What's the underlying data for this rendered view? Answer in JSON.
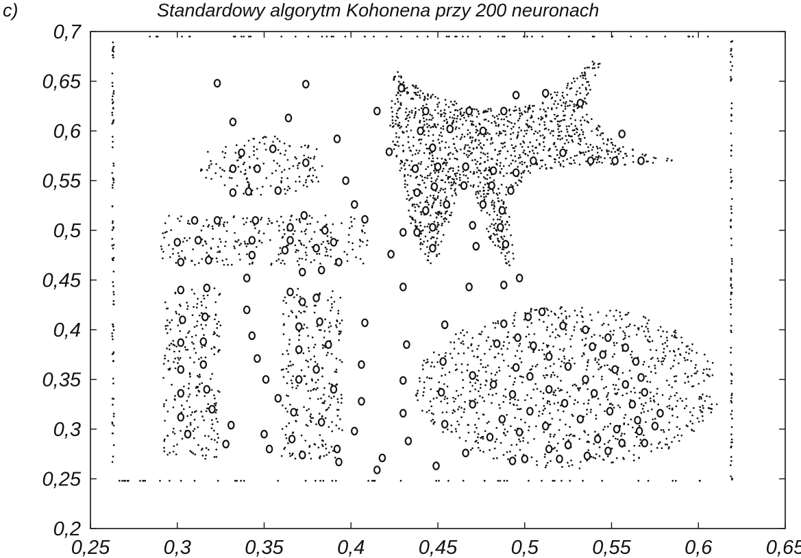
{
  "panel_letter": "c)",
  "chart_data": {
    "type": "scatter",
    "title": "Standardowy algorytm Kohonena przy 200 neuronach",
    "xlabel": "",
    "ylabel": "",
    "xlim": [
      0.25,
      0.65
    ],
    "ylim": [
      0.2,
      0.7
    ],
    "x_tick_labels": [
      "0,25",
      "0,3",
      "0,35",
      "0,4",
      "0,45",
      "0,5",
      "0,55",
      "0,6",
      "0,65"
    ],
    "y_tick_labels": [
      "0,2",
      "0,25",
      "0,3",
      "0,35",
      "0,4",
      "0,45",
      "0,5",
      "0,55",
      "0,6",
      "0,65",
      "0,7"
    ],
    "grid": false,
    "legend": "none",
    "series": [
      {
        "values": "data points (dots)",
        "regions": [
          {
            "shape": "rect",
            "x": [
              0.29,
              0.41
            ],
            "y": [
              0.465,
              0.515
            ]
          },
          {
            "shape": "rect",
            "x": [
              0.292,
              0.325
            ],
            "y": [
              0.27,
              0.442
            ]
          },
          {
            "shape": "rect",
            "x": [
              0.36,
              0.395
            ],
            "y": [
              0.27,
              0.442
            ]
          },
          {
            "shape": "ellipse",
            "center": [
              0.525,
              0.342
            ],
            "radii": [
              0.088,
              0.082
            ]
          },
          {
            "shape": "ellipse",
            "center": [
              0.35,
              0.565
            ],
            "radii": [
              0.037,
              0.03
            ]
          },
          {
            "shape": "star",
            "x": [
              0.42,
              0.585
            ],
            "y": [
              0.455,
              0.675
            ]
          }
        ],
        "frame": {
          "x": [
            0.263,
            0.619
          ],
          "y": [
            0.248,
            0.695
          ]
        }
      },
      {
        "values": "neurons (o markers)",
        "points": [
          [
            0.323,
            0.648
          ],
          [
            0.374,
            0.647
          ],
          [
            0.332,
            0.609
          ],
          [
            0.364,
            0.613
          ],
          [
            0.337,
            0.578
          ],
          [
            0.355,
            0.582
          ],
          [
            0.332,
            0.562
          ],
          [
            0.346,
            0.562
          ],
          [
            0.374,
            0.568
          ],
          [
            0.332,
            0.538
          ],
          [
            0.341,
            0.539
          ],
          [
            0.358,
            0.54
          ],
          [
            0.392,
            0.592
          ],
          [
            0.397,
            0.55
          ],
          [
            0.402,
            0.526
          ],
          [
            0.408,
            0.511
          ],
          [
            0.415,
            0.62
          ],
          [
            0.422,
            0.579
          ],
          [
            0.429,
            0.643
          ],
          [
            0.44,
            0.6
          ],
          [
            0.447,
            0.583
          ],
          [
            0.443,
            0.62
          ],
          [
            0.457,
            0.602
          ],
          [
            0.468,
            0.62
          ],
          [
            0.476,
            0.6
          ],
          [
            0.488,
            0.62
          ],
          [
            0.495,
            0.636
          ],
          [
            0.512,
            0.638
          ],
          [
            0.532,
            0.628
          ],
          [
            0.437,
            0.562
          ],
          [
            0.45,
            0.564
          ],
          [
            0.466,
            0.564
          ],
          [
            0.482,
            0.56
          ],
          [
            0.495,
            0.558
          ],
          [
            0.505,
            0.57
          ],
          [
            0.522,
            0.578
          ],
          [
            0.538,
            0.57
          ],
          [
            0.556,
            0.597
          ],
          [
            0.552,
            0.57
          ],
          [
            0.567,
            0.57
          ],
          [
            0.448,
            0.544
          ],
          [
            0.465,
            0.545
          ],
          [
            0.481,
            0.545
          ],
          [
            0.492,
            0.54
          ],
          [
            0.438,
            0.538
          ],
          [
            0.455,
            0.526
          ],
          [
            0.476,
            0.526
          ],
          [
            0.487,
            0.52
          ],
          [
            0.443,
            0.52
          ],
          [
            0.447,
            0.503
          ],
          [
            0.47,
            0.505
          ],
          [
            0.486,
            0.503
          ],
          [
            0.438,
            0.498
          ],
          [
            0.447,
            0.482
          ],
          [
            0.472,
            0.484
          ],
          [
            0.489,
            0.486
          ],
          [
            0.43,
            0.498
          ],
          [
            0.423,
            0.476
          ],
          [
            0.497,
            0.452
          ],
          [
            0.488,
            0.445
          ],
          [
            0.468,
            0.443
          ],
          [
            0.43,
            0.443
          ],
          [
            0.31,
            0.51
          ],
          [
            0.323,
            0.51
          ],
          [
            0.345,
            0.51
          ],
          [
            0.365,
            0.503
          ],
          [
            0.373,
            0.515
          ],
          [
            0.385,
            0.5
          ],
          [
            0.3,
            0.488
          ],
          [
            0.312,
            0.49
          ],
          [
            0.343,
            0.49
          ],
          [
            0.365,
            0.49
          ],
          [
            0.38,
            0.482
          ],
          [
            0.39,
            0.488
          ],
          [
            0.302,
            0.468
          ],
          [
            0.318,
            0.47
          ],
          [
            0.343,
            0.475
          ],
          [
            0.362,
            0.48
          ],
          [
            0.372,
            0.458
          ],
          [
            0.383,
            0.46
          ],
          [
            0.393,
            0.468
          ],
          [
            0.34,
            0.452
          ],
          [
            0.302,
            0.44
          ],
          [
            0.317,
            0.442
          ],
          [
            0.365,
            0.438
          ],
          [
            0.38,
            0.432
          ],
          [
            0.303,
            0.41
          ],
          [
            0.316,
            0.413
          ],
          [
            0.372,
            0.428
          ],
          [
            0.382,
            0.408
          ],
          [
            0.302,
            0.387
          ],
          [
            0.315,
            0.388
          ],
          [
            0.37,
            0.403
          ],
          [
            0.387,
            0.385
          ],
          [
            0.302,
            0.36
          ],
          [
            0.315,
            0.365
          ],
          [
            0.37,
            0.38
          ],
          [
            0.38,
            0.36
          ],
          [
            0.302,
            0.336
          ],
          [
            0.317,
            0.34
          ],
          [
            0.37,
            0.35
          ],
          [
            0.39,
            0.34
          ],
          [
            0.302,
            0.312
          ],
          [
            0.32,
            0.32
          ],
          [
            0.367,
            0.317
          ],
          [
            0.383,
            0.307
          ],
          [
            0.306,
            0.295
          ],
          [
            0.328,
            0.285
          ],
          [
            0.366,
            0.29
          ],
          [
            0.372,
            0.274
          ],
          [
            0.392,
            0.28
          ],
          [
            0.393,
            0.267
          ],
          [
            0.331,
            0.304
          ],
          [
            0.35,
            0.295
          ],
          [
            0.353,
            0.28
          ],
          [
            0.358,
            0.331
          ],
          [
            0.34,
            0.42
          ],
          [
            0.343,
            0.394
          ],
          [
            0.346,
            0.371
          ],
          [
            0.351,
            0.35
          ],
          [
            0.408,
            0.407
          ],
          [
            0.406,
            0.365
          ],
          [
            0.406,
            0.328
          ],
          [
            0.402,
            0.298
          ],
          [
            0.418,
            0.271
          ],
          [
            0.415,
            0.259
          ],
          [
            0.432,
            0.385
          ],
          [
            0.43,
            0.349
          ],
          [
            0.43,
            0.316
          ],
          [
            0.433,
            0.288
          ],
          [
            0.449,
            0.263
          ],
          [
            0.454,
            0.405
          ],
          [
            0.453,
            0.368
          ],
          [
            0.452,
            0.337
          ],
          [
            0.454,
            0.305
          ],
          [
            0.466,
            0.276
          ],
          [
            0.47,
            0.354
          ],
          [
            0.47,
            0.325
          ],
          [
            0.484,
            0.386
          ],
          [
            0.482,
            0.345
          ],
          [
            0.487,
            0.31
          ],
          [
            0.488,
            0.406
          ],
          [
            0.48,
            0.292
          ],
          [
            0.493,
            0.268
          ],
          [
            0.496,
            0.392
          ],
          [
            0.495,
            0.362
          ],
          [
            0.493,
            0.335
          ],
          [
            0.497,
            0.297
          ],
          [
            0.5,
            0.27
          ],
          [
            0.502,
            0.413
          ],
          [
            0.505,
            0.384
          ],
          [
            0.503,
            0.353
          ],
          [
            0.503,
            0.318
          ],
          [
            0.51,
            0.418
          ],
          [
            0.514,
            0.373
          ],
          [
            0.514,
            0.34
          ],
          [
            0.512,
            0.303
          ],
          [
            0.514,
            0.28
          ],
          [
            0.522,
            0.404
          ],
          [
            0.525,
            0.363
          ],
          [
            0.523,
            0.326
          ],
          [
            0.52,
            0.27
          ],
          [
            0.525,
            0.284
          ],
          [
            0.535,
            0.4
          ],
          [
            0.535,
            0.35
          ],
          [
            0.532,
            0.31
          ],
          [
            0.536,
            0.273
          ],
          [
            0.539,
            0.383
          ],
          [
            0.54,
            0.336
          ],
          [
            0.542,
            0.29
          ],
          [
            0.548,
            0.278
          ],
          [
            0.545,
            0.375
          ],
          [
            0.548,
            0.392
          ],
          [
            0.549,
            0.318
          ],
          [
            0.552,
            0.36
          ],
          [
            0.553,
            0.3
          ],
          [
            0.556,
            0.286
          ],
          [
            0.558,
            0.382
          ],
          [
            0.558,
            0.345
          ],
          [
            0.562,
            0.325
          ],
          [
            0.564,
            0.368
          ],
          [
            0.565,
            0.309
          ],
          [
            0.566,
            0.298
          ],
          [
            0.567,
            0.352
          ],
          [
            0.569,
            0.337
          ],
          [
            0.578,
            0.316
          ],
          [
            0.575,
            0.303
          ],
          [
            0.569,
            0.286
          ]
        ]
      }
    ]
  }
}
